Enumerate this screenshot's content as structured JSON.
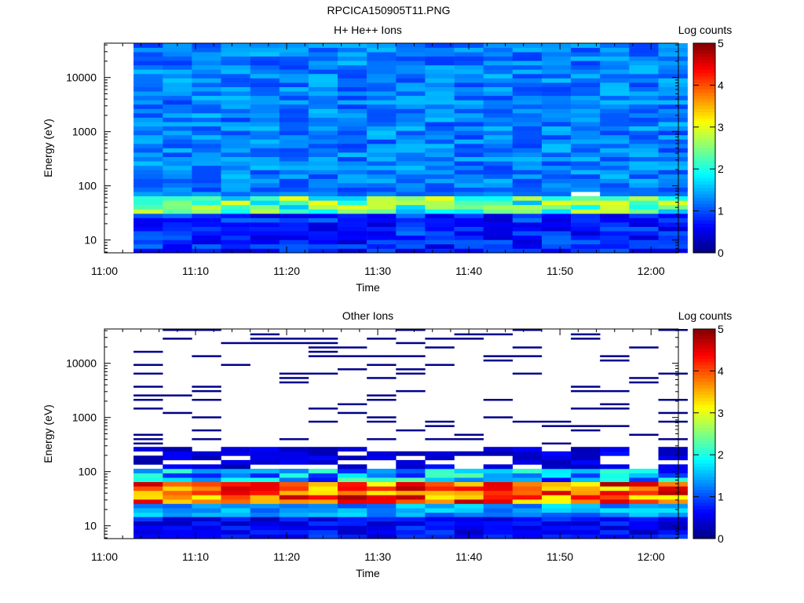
{
  "page": {
    "title": "RPCICA150905T11.PNG"
  },
  "colors": {
    "colormap": [
      "#000080",
      "#0000ff",
      "#0080ff",
      "#00ffff",
      "#80ff80",
      "#ffff00",
      "#ff8000",
      "#ff0000",
      "#800000"
    ],
    "nodata": "#ffffff"
  },
  "colorbar": {
    "label": "Log counts",
    "ticks": [
      0,
      1,
      2,
      3,
      4,
      5
    ],
    "range": [
      0,
      5
    ]
  },
  "chart_data": [
    {
      "type": "heatmap",
      "title": "H+ He++ Ions",
      "xlabel": "Time",
      "ylabel": "Energy (eV)",
      "xticks": [
        "11:00",
        "11:10",
        "11:20",
        "11:30",
        "11:40",
        "11:50",
        "12:00"
      ],
      "xlim_minutes": [
        0,
        63
      ],
      "yscale": "log",
      "yticks": [
        10,
        100,
        1000,
        10000
      ],
      "ylim": [
        5.8,
        43000
      ],
      "time_bins_minutes": [
        3.2,
        6.4,
        9.6,
        12.8,
        16.0,
        19.2,
        22.4,
        25.6,
        28.8,
        32.0,
        35.2,
        38.4,
        41.6,
        44.8,
        48.0,
        51.2,
        54.4,
        57.6,
        60.8
      ],
      "energy_bins": 48,
      "energy_range_eV": [
        5.8,
        43000
      ],
      "value_range_log_counts": [
        0,
        5
      ],
      "notes": "Mostly 0.8–1.6 log counts across all energies; low-energy band near 40–60 eV reaches ~2–3.3 log counts; missing cell near 60 eV at ~11:52."
    },
    {
      "type": "heatmap",
      "title": "Other Ions",
      "xlabel": "Time",
      "ylabel": "Energy (eV)",
      "xticks": [
        "11:00",
        "11:10",
        "11:20",
        "11:30",
        "11:40",
        "11:50",
        "12:00"
      ],
      "xlim_minutes": [
        0,
        63
      ],
      "yscale": "log",
      "yticks": [
        10,
        100,
        1000,
        10000
      ],
      "ylim": [
        5.8,
        43000
      ],
      "time_bins_minutes": [
        3.2,
        6.4,
        9.6,
        12.8,
        16.0,
        19.2,
        22.4,
        25.6,
        28.8,
        32.0,
        35.2,
        38.4,
        41.6,
        44.8,
        48.0,
        51.2,
        54.4,
        57.6,
        60.8
      ],
      "energy_bins": 48,
      "energy_range_eV": [
        5.8,
        43000
      ],
      "value_range_log_counts": [
        0,
        5
      ],
      "notes": "Continuous counts below ~200 eV; peak band at 30–60 eV reaching ~4–4.8 log counts; sparse single-count lines (~0–0.3) above ~300 eV."
    }
  ]
}
